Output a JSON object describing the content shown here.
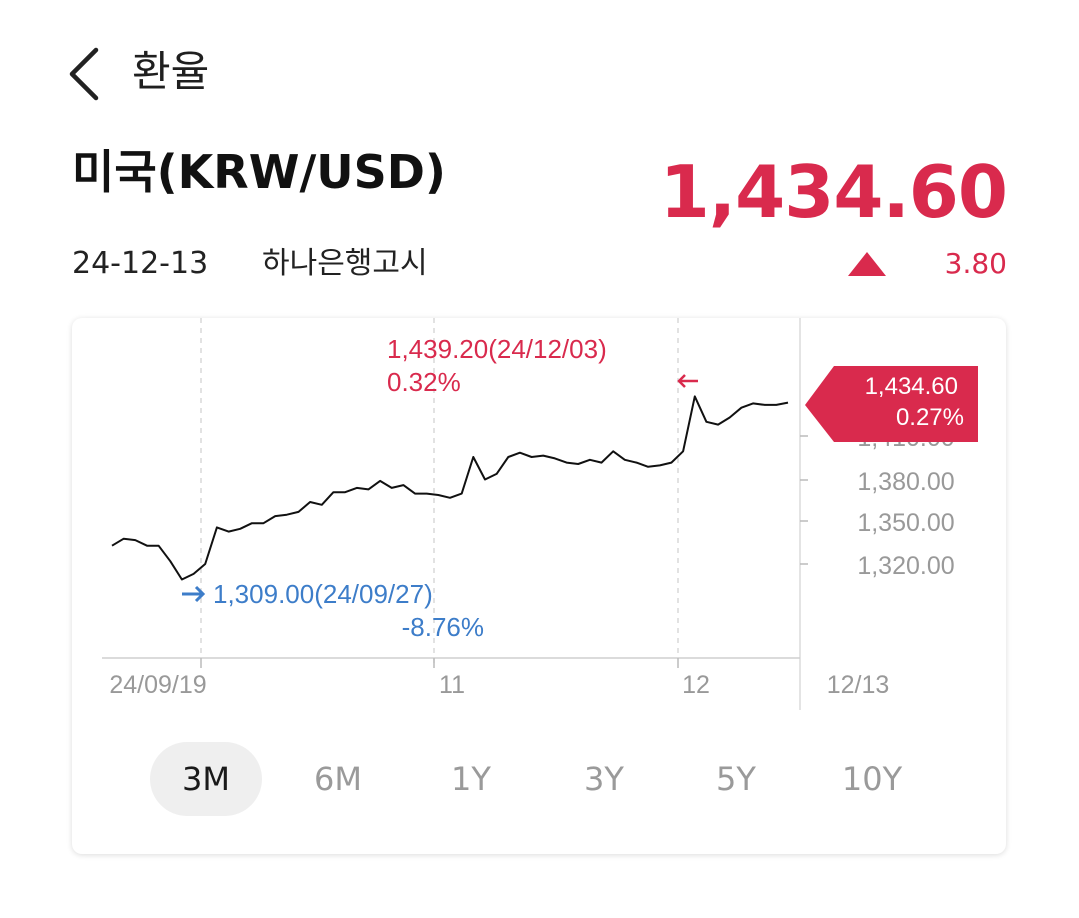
{
  "header": {
    "title": "환율",
    "back_icon": "chevron-left-icon"
  },
  "summary": {
    "currency_name": "미국(KRW/USD)",
    "rate": "1,434.60",
    "date": "24-12-13",
    "source": "하나은행고시",
    "change": "3.80",
    "change_direction": "up"
  },
  "colors": {
    "up": "#d92a4d",
    "down": "#3d7dc9",
    "line": "#111111"
  },
  "chart_data": {
    "type": "line",
    "title": "",
    "xlabel": "",
    "ylabel": "",
    "x_tick_labels": [
      "24/09/19",
      "11",
      "12",
      "12/13"
    ],
    "y_tick_labels": [
      "1,320.00",
      "1,350.00",
      "1,380.00",
      "1,410.00"
    ],
    "ylim": [
      1280,
      1460
    ],
    "series": [
      {
        "values": [
          1333,
          1338,
          1337,
          1333,
          1333,
          1322,
          1309,
          1313,
          1320,
          1346,
          1343,
          1345,
          1349,
          1349,
          1354,
          1355,
          1357,
          1364,
          1362,
          1371,
          1371,
          1374,
          1373,
          1379,
          1374,
          1376,
          1370,
          1370,
          1369,
          1367,
          1370,
          1396,
          1380,
          1384,
          1396,
          1399,
          1396,
          1397,
          1395,
          1392,
          1391,
          1394,
          1392,
          1400,
          1394,
          1392,
          1389,
          1390,
          1392,
          1400,
          1439,
          1421,
          1419,
          1424,
          1431,
          1434,
          1433,
          1433,
          1434.6
        ]
      }
    ],
    "current": {
      "value": "1,434.60",
      "change_pct": "0.27%"
    },
    "high": {
      "label": "1,439.20(24/12/03)",
      "change_pct": "0.32%"
    },
    "low": {
      "label": "1,309.00(24/09/27)",
      "change_pct": "-8.76%"
    }
  },
  "period_tabs": [
    {
      "label": "3M",
      "active": true
    },
    {
      "label": "6M",
      "active": false
    },
    {
      "label": "1Y",
      "active": false
    },
    {
      "label": "3Y",
      "active": false
    },
    {
      "label": "5Y",
      "active": false
    },
    {
      "label": "10Y",
      "active": false
    }
  ]
}
